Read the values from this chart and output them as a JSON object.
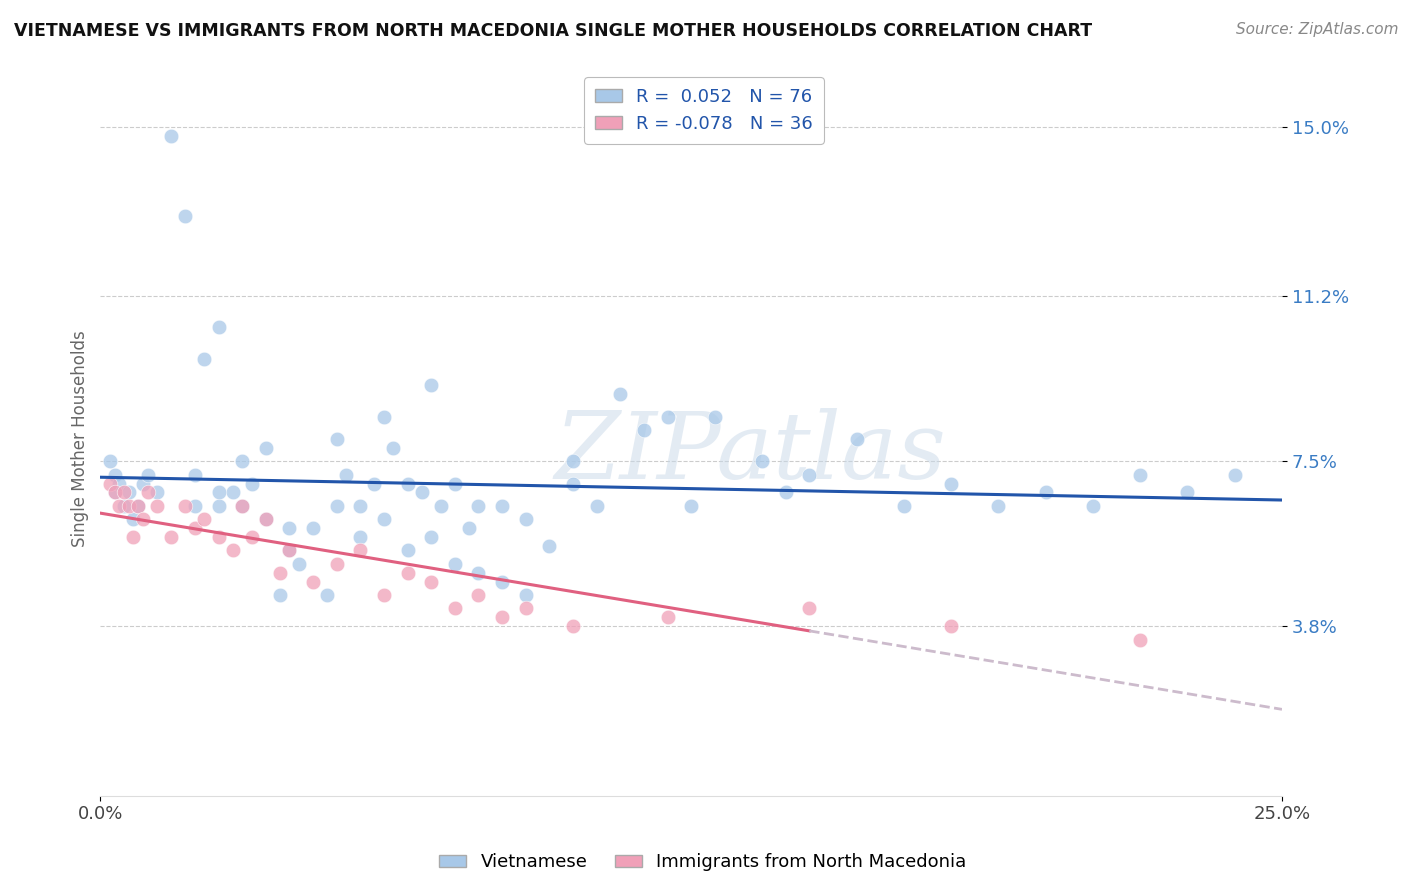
{
  "title": "VIETNAMESE VS IMMIGRANTS FROM NORTH MACEDONIA SINGLE MOTHER HOUSEHOLDS CORRELATION CHART",
  "source": "Source: ZipAtlas.com",
  "ylabel": "Single Mother Households",
  "xlim": [
    0.0,
    0.25
  ],
  "ylim": [
    0.0,
    0.16
  ],
  "ytick_positions": [
    0.038,
    0.075,
    0.112,
    0.15
  ],
  "ytick_labels": [
    "3.8%",
    "7.5%",
    "11.2%",
    "15.0%"
  ],
  "r_viet": 0.052,
  "n_viet": 76,
  "r_mac": -0.078,
  "n_mac": 36,
  "color_viet": "#A8C8E8",
  "color_mac": "#F0A0B8",
  "trendline_viet_color": "#2255AA",
  "trendline_mac_color": "#E06080",
  "trendline_mac_ext_color": "#CCBBCC",
  "background_color": "#FFFFFF",
  "grid_color": "#CCCCCC",
  "viet_x": [
    0.002,
    0.003,
    0.003,
    0.004,
    0.005,
    0.006,
    0.007,
    0.008,
    0.009,
    0.01,
    0.012,
    0.015,
    0.018,
    0.02,
    0.022,
    0.025,
    0.025,
    0.028,
    0.03,
    0.032,
    0.035,
    0.038,
    0.04,
    0.042,
    0.045,
    0.048,
    0.05,
    0.052,
    0.055,
    0.058,
    0.06,
    0.062,
    0.065,
    0.068,
    0.07,
    0.072,
    0.075,
    0.078,
    0.08,
    0.085,
    0.09,
    0.095,
    0.1,
    0.1,
    0.105,
    0.11,
    0.115,
    0.12,
    0.125,
    0.13,
    0.14,
    0.145,
    0.15,
    0.16,
    0.17,
    0.18,
    0.19,
    0.2,
    0.21,
    0.22,
    0.23,
    0.24,
    0.02,
    0.025,
    0.03,
    0.035,
    0.04,
    0.05,
    0.055,
    0.06,
    0.065,
    0.07,
    0.075,
    0.08,
    0.085,
    0.09
  ],
  "viet_y": [
    0.075,
    0.072,
    0.068,
    0.07,
    0.065,
    0.068,
    0.062,
    0.065,
    0.07,
    0.072,
    0.068,
    0.148,
    0.13,
    0.065,
    0.098,
    0.105,
    0.065,
    0.068,
    0.075,
    0.07,
    0.078,
    0.045,
    0.055,
    0.052,
    0.06,
    0.045,
    0.08,
    0.072,
    0.065,
    0.07,
    0.085,
    0.078,
    0.07,
    0.068,
    0.092,
    0.065,
    0.07,
    0.06,
    0.065,
    0.065,
    0.062,
    0.056,
    0.07,
    0.075,
    0.065,
    0.09,
    0.082,
    0.085,
    0.065,
    0.085,
    0.075,
    0.068,
    0.072,
    0.08,
    0.065,
    0.07,
    0.065,
    0.068,
    0.065,
    0.072,
    0.068,
    0.072,
    0.072,
    0.068,
    0.065,
    0.062,
    0.06,
    0.065,
    0.058,
    0.062,
    0.055,
    0.058,
    0.052,
    0.05,
    0.048,
    0.045
  ],
  "mac_x": [
    0.002,
    0.003,
    0.004,
    0.005,
    0.006,
    0.007,
    0.008,
    0.009,
    0.01,
    0.012,
    0.015,
    0.018,
    0.02,
    0.022,
    0.025,
    0.028,
    0.03,
    0.032,
    0.035,
    0.038,
    0.04,
    0.045,
    0.05,
    0.055,
    0.06,
    0.065,
    0.07,
    0.075,
    0.08,
    0.085,
    0.09,
    0.1,
    0.12,
    0.15,
    0.18,
    0.22
  ],
  "mac_y": [
    0.07,
    0.068,
    0.065,
    0.068,
    0.065,
    0.058,
    0.065,
    0.062,
    0.068,
    0.065,
    0.058,
    0.065,
    0.06,
    0.062,
    0.058,
    0.055,
    0.065,
    0.058,
    0.062,
    0.05,
    0.055,
    0.048,
    0.052,
    0.055,
    0.045,
    0.05,
    0.048,
    0.042,
    0.045,
    0.04,
    0.042,
    0.038,
    0.04,
    0.042,
    0.038,
    0.035
  ]
}
